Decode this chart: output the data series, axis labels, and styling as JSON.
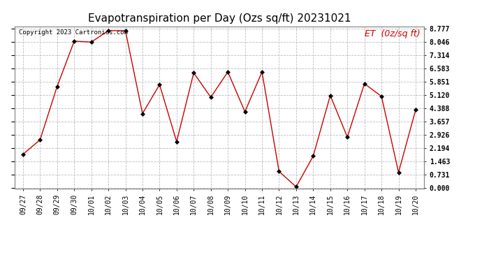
{
  "title": "Evapotranspiration per Day (Ozs sq/ft) 20231021",
  "copyright_text": "Copyright 2023 Cartronics.com",
  "legend_text": "ET  (0z/sq ft)",
  "x_labels": [
    "09/27",
    "09/28",
    "09/29",
    "09/30",
    "10/01",
    "10/02",
    "10/03",
    "10/04",
    "10/05",
    "10/06",
    "10/07",
    "10/08",
    "10/09",
    "10/10",
    "10/11",
    "10/12",
    "10/13",
    "10/14",
    "10/15",
    "10/16",
    "10/17",
    "10/18",
    "10/19",
    "10/20"
  ],
  "y_values": [
    1.85,
    2.65,
    5.6,
    8.1,
    8.05,
    8.68,
    8.68,
    4.1,
    5.7,
    2.55,
    6.35,
    5.0,
    6.4,
    4.2,
    6.4,
    0.9,
    0.05,
    1.75,
    5.1,
    2.8,
    5.75,
    5.05,
    0.85,
    4.3
  ],
  "y_ticks": [
    0.0,
    0.731,
    1.463,
    2.194,
    2.926,
    3.657,
    4.388,
    5.12,
    5.851,
    6.583,
    7.314,
    8.046,
    8.777
  ],
  "line_color": "#cc0000",
  "marker_color": "#000000",
  "bg_color": "#ffffff",
  "grid_color": "#bbbbbb",
  "title_fontsize": 11,
  "copyright_fontsize": 6.5,
  "legend_fontsize": 9,
  "tick_fontsize": 7,
  "y_min": 0.0,
  "y_max": 8.777
}
